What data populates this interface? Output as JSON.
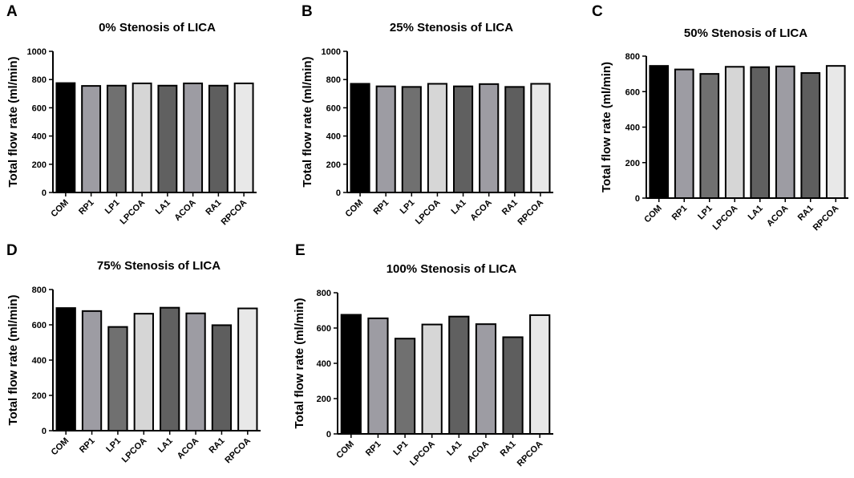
{
  "figure": {
    "colors": [
      "#000000",
      "#9d9ca3",
      "#707070",
      "#d6d6d6",
      "#606060",
      "#9d9ca3",
      "#5e5e5e",
      "#e8e8e8"
    ]
  },
  "chart_data": [
    {
      "panel": "A",
      "type": "bar",
      "title": "0% Stenosis of LICA",
      "xlabel": "",
      "ylabel": "Total flow rate (ml/min)",
      "ylim": [
        0,
        1000
      ],
      "yticks": [
        0,
        200,
        400,
        600,
        800,
        1000
      ],
      "categories": [
        "COM",
        "RP1",
        "LP1",
        "LPCOA",
        "LA1",
        "ACOA",
        "RA1",
        "RPCOA"
      ],
      "values": [
        775,
        755,
        757,
        773,
        757,
        773,
        757,
        773
      ]
    },
    {
      "panel": "B",
      "type": "bar",
      "title": "25% Stenosis of LICA",
      "xlabel": "",
      "ylabel": "Total flow rate (ml/min)",
      "ylim": [
        0,
        1000
      ],
      "yticks": [
        0,
        200,
        400,
        600,
        800,
        1000
      ],
      "categories": [
        "COM",
        "RP1",
        "LP1",
        "LPCOA",
        "LA1",
        "ACOA",
        "RA1",
        "RPCOA"
      ],
      "values": [
        770,
        752,
        748,
        770,
        752,
        768,
        748,
        770
      ]
    },
    {
      "panel": "C",
      "type": "bar",
      "title": "50% Stenosis of LICA",
      "xlabel": "",
      "ylabel": "Total flow rate (ml/min)",
      "ylim": [
        0,
        800
      ],
      "yticks": [
        0,
        200,
        400,
        600,
        800
      ],
      "categories": [
        "COM",
        "RP1",
        "LP1",
        "LPCOA",
        "LA1",
        "ACOA",
        "RA1",
        "RPCOA"
      ],
      "values": [
        745,
        725,
        700,
        740,
        738,
        742,
        705,
        745
      ]
    },
    {
      "panel": "D",
      "type": "bar",
      "title": "75% Stenosis of LICA",
      "xlabel": "",
      "ylabel": "Total flow rate (ml/min)",
      "ylim": [
        0,
        800
      ],
      "yticks": [
        0,
        200,
        400,
        600,
        800
      ],
      "categories": [
        "COM",
        "RP1",
        "LP1",
        "LPCOA",
        "LA1",
        "ACOA",
        "RA1",
        "RPCOA"
      ],
      "values": [
        695,
        678,
        588,
        663,
        697,
        665,
        598,
        693
      ]
    },
    {
      "panel": "E",
      "type": "bar",
      "title": "100% Stenosis of LICA",
      "xlabel": "",
      "ylabel": "Total flow rate (ml/min)",
      "ylim": [
        0,
        800
      ],
      "yticks": [
        0,
        200,
        400,
        600,
        800
      ],
      "categories": [
        "COM",
        "RP1",
        "LP1",
        "LPCOA",
        "LA1",
        "ACOA",
        "RA1",
        "RPCOA"
      ],
      "values": [
        675,
        655,
        540,
        620,
        665,
        622,
        548,
        673
      ]
    }
  ]
}
